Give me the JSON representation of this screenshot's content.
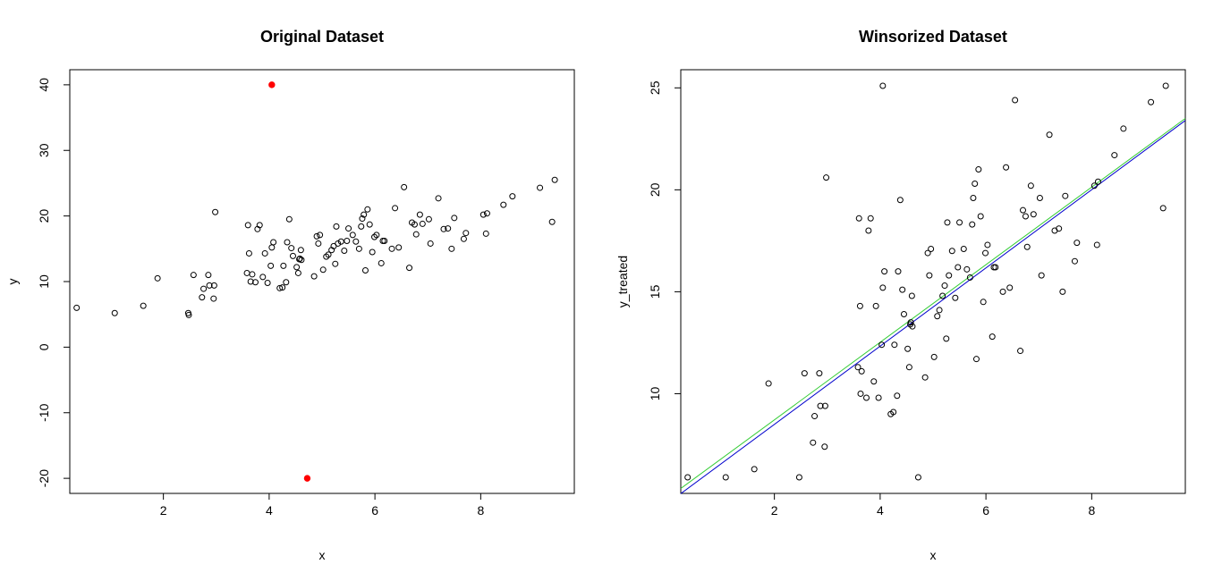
{
  "chart_data": [
    {
      "type": "scatter",
      "title": "Original Dataset",
      "xlabel": "x",
      "ylabel": "y",
      "xlim": [
        0.23,
        9.77
      ],
      "ylim": [
        -22.3,
        42.3
      ],
      "xticks": [
        2,
        4,
        6,
        8
      ],
      "yticks": [
        -20,
        -10,
        0,
        10,
        20,
        30,
        40
      ],
      "ytick_rotation": -90,
      "grid": false,
      "point_color": "#000000",
      "highlight_color": "#ff0000",
      "points": [
        [
          0.36,
          6.0
        ],
        [
          1.08,
          5.2
        ],
        [
          1.62,
          6.3
        ],
        [
          1.89,
          10.5
        ],
        [
          2.47,
          5.2
        ],
        [
          2.48,
          4.9
        ],
        [
          2.57,
          11.0
        ],
        [
          2.73,
          7.6
        ],
        [
          2.76,
          8.9
        ],
        [
          2.85,
          11.0
        ],
        [
          2.87,
          9.4
        ],
        [
          2.95,
          7.4
        ],
        [
          2.96,
          9.4
        ],
        [
          2.98,
          20.6
        ],
        [
          3.58,
          11.3
        ],
        [
          3.6,
          18.6
        ],
        [
          3.62,
          14.3
        ],
        [
          3.65,
          10.0
        ],
        [
          3.68,
          11.1
        ],
        [
          3.74,
          9.9
        ],
        [
          3.78,
          18.0
        ],
        [
          3.82,
          18.6
        ],
        [
          3.88,
          10.7
        ],
        [
          3.92,
          14.3
        ],
        [
          3.97,
          9.8
        ],
        [
          4.03,
          12.4
        ],
        [
          4.05,
          15.2
        ],
        [
          4.08,
          16.0
        ],
        [
          4.2,
          9.0
        ],
        [
          4.25,
          9.1
        ],
        [
          4.27,
          12.4
        ],
        [
          4.32,
          9.9
        ],
        [
          4.34,
          16.0
        ],
        [
          4.38,
          19.5
        ],
        [
          4.42,
          15.1
        ],
        [
          4.45,
          13.9
        ],
        [
          4.52,
          12.2
        ],
        [
          4.55,
          11.3
        ],
        [
          4.57,
          13.4
        ],
        [
          4.58,
          13.5
        ],
        [
          4.6,
          14.8
        ],
        [
          4.61,
          13.3
        ],
        [
          4.85,
          10.8
        ],
        [
          4.9,
          16.9
        ],
        [
          4.93,
          15.8
        ],
        [
          4.96,
          17.1
        ],
        [
          5.02,
          11.8
        ],
        [
          5.08,
          13.8
        ],
        [
          5.12,
          14.1
        ],
        [
          5.18,
          14.8
        ],
        [
          5.22,
          15.4
        ],
        [
          5.25,
          12.7
        ],
        [
          5.27,
          18.4
        ],
        [
          5.3,
          15.8
        ],
        [
          5.36,
          16.1
        ],
        [
          5.42,
          14.7
        ],
        [
          5.47,
          16.2
        ],
        [
          5.5,
          18.1
        ],
        [
          5.58,
          17.1
        ],
        [
          5.64,
          16.1
        ],
        [
          5.7,
          15.0
        ],
        [
          5.74,
          18.4
        ],
        [
          5.76,
          19.6
        ],
        [
          5.79,
          20.2
        ],
        [
          5.82,
          11.7
        ],
        [
          5.86,
          21.0
        ],
        [
          5.9,
          18.7
        ],
        [
          5.95,
          14.5
        ],
        [
          5.99,
          16.8
        ],
        [
          6.03,
          17.1
        ],
        [
          6.12,
          12.8
        ],
        [
          6.15,
          16.2
        ],
        [
          6.18,
          16.2
        ],
        [
          6.32,
          15.0
        ],
        [
          6.38,
          21.2
        ],
        [
          6.45,
          15.2
        ],
        [
          6.55,
          24.4
        ],
        [
          6.65,
          12.1
        ],
        [
          6.7,
          19.0
        ],
        [
          6.75,
          18.7
        ],
        [
          6.78,
          17.2
        ],
        [
          6.85,
          20.2
        ],
        [
          6.9,
          18.8
        ],
        [
          7.02,
          19.5
        ],
        [
          7.05,
          15.8
        ],
        [
          7.2,
          22.7
        ],
        [
          7.3,
          18.0
        ],
        [
          7.38,
          18.1
        ],
        [
          7.45,
          15.0
        ],
        [
          7.5,
          19.7
        ],
        [
          7.68,
          16.5
        ],
        [
          7.72,
          17.4
        ],
        [
          8.05,
          20.2
        ],
        [
          8.1,
          17.3
        ],
        [
          8.12,
          20.4
        ],
        [
          8.43,
          21.7
        ],
        [
          8.6,
          23.0
        ],
        [
          9.12,
          24.3
        ],
        [
          9.35,
          19.1
        ],
        [
          9.4,
          25.5
        ]
      ],
      "highlight_points": [
        [
          4.05,
          40.0
        ],
        [
          4.72,
          -20.0
        ]
      ]
    },
    {
      "type": "scatter",
      "title": "Winsorized Dataset",
      "xlabel": "x",
      "ylabel": "y_treated",
      "xlim": [
        0.23,
        9.77
      ],
      "ylim": [
        5.11,
        25.89
      ],
      "xticks": [
        2,
        4,
        6,
        8
      ],
      "yticks": [
        10,
        15,
        20,
        25
      ],
      "ytick_rotation": -90,
      "grid": false,
      "point_color": "#000000",
      "points": [
        [
          0.36,
          5.9
        ],
        [
          1.08,
          5.9
        ],
        [
          1.62,
          6.3
        ],
        [
          1.89,
          10.5
        ],
        [
          2.47,
          5.9
        ],
        [
          2.57,
          11.0
        ],
        [
          2.73,
          7.6
        ],
        [
          2.76,
          8.9
        ],
        [
          2.85,
          11.0
        ],
        [
          2.87,
          9.4
        ],
        [
          2.95,
          7.4
        ],
        [
          2.96,
          9.4
        ],
        [
          2.98,
          20.6
        ],
        [
          3.58,
          11.3
        ],
        [
          3.6,
          18.6
        ],
        [
          3.62,
          14.3
        ],
        [
          3.63,
          10.0
        ],
        [
          3.65,
          11.1
        ],
        [
          3.74,
          9.8
        ],
        [
          3.78,
          18.0
        ],
        [
          3.82,
          18.6
        ],
        [
          3.88,
          10.6
        ],
        [
          3.92,
          14.3
        ],
        [
          3.97,
          9.8
        ],
        [
          4.03,
          12.4
        ],
        [
          4.05,
          15.2
        ],
        [
          4.05,
          25.1
        ],
        [
          4.08,
          16.0
        ],
        [
          4.2,
          9.0
        ],
        [
          4.25,
          9.1
        ],
        [
          4.27,
          12.4
        ],
        [
          4.32,
          9.9
        ],
        [
          4.34,
          16.0
        ],
        [
          4.38,
          19.5
        ],
        [
          4.42,
          15.1
        ],
        [
          4.45,
          13.9
        ],
        [
          4.52,
          12.2
        ],
        [
          4.55,
          11.3
        ],
        [
          4.57,
          13.4
        ],
        [
          4.58,
          13.5
        ],
        [
          4.6,
          14.8
        ],
        [
          4.61,
          13.3
        ],
        [
          4.72,
          5.9
        ],
        [
          4.85,
          10.8
        ],
        [
          4.9,
          16.9
        ],
        [
          4.93,
          15.8
        ],
        [
          4.96,
          17.1
        ],
        [
          5.02,
          11.8
        ],
        [
          5.08,
          13.8
        ],
        [
          5.12,
          14.1
        ],
        [
          5.18,
          14.8
        ],
        [
          5.22,
          15.3
        ],
        [
          5.25,
          12.7
        ],
        [
          5.27,
          18.4
        ],
        [
          5.3,
          15.8
        ],
        [
          5.36,
          17.0
        ],
        [
          5.42,
          14.7
        ],
        [
          5.47,
          16.2
        ],
        [
          5.5,
          18.4
        ],
        [
          5.58,
          17.1
        ],
        [
          5.64,
          16.1
        ],
        [
          5.7,
          15.7
        ],
        [
          5.74,
          18.3
        ],
        [
          5.76,
          19.6
        ],
        [
          5.79,
          20.3
        ],
        [
          5.82,
          11.7
        ],
        [
          5.86,
          21.0
        ],
        [
          5.9,
          18.7
        ],
        [
          5.95,
          14.5
        ],
        [
          5.99,
          16.9
        ],
        [
          6.03,
          17.3
        ],
        [
          6.12,
          12.8
        ],
        [
          6.15,
          16.2
        ],
        [
          6.18,
          16.2
        ],
        [
          6.32,
          15.0
        ],
        [
          6.38,
          21.1
        ],
        [
          6.45,
          15.2
        ],
        [
          6.55,
          24.4
        ],
        [
          6.65,
          12.1
        ],
        [
          6.7,
          19.0
        ],
        [
          6.75,
          18.7
        ],
        [
          6.78,
          17.2
        ],
        [
          6.85,
          20.2
        ],
        [
          6.9,
          18.8
        ],
        [
          7.02,
          19.6
        ],
        [
          7.05,
          15.8
        ],
        [
          7.2,
          22.7
        ],
        [
          7.3,
          18.0
        ],
        [
          7.38,
          18.1
        ],
        [
          7.45,
          15.0
        ],
        [
          7.5,
          19.7
        ],
        [
          7.68,
          16.5
        ],
        [
          7.72,
          17.4
        ],
        [
          8.05,
          20.2
        ],
        [
          8.1,
          17.3
        ],
        [
          8.12,
          20.4
        ],
        [
          8.43,
          21.7
        ],
        [
          8.6,
          23.0
        ],
        [
          9.12,
          24.3
        ],
        [
          9.35,
          19.1
        ],
        [
          9.4,
          25.1
        ]
      ],
      "lines": [
        {
          "color": "#0000cc",
          "x": [
            0.23,
            9.77
          ],
          "y": [
            5.1,
            23.4
          ]
        },
        {
          "color": "#33cc33",
          "x": [
            0.23,
            9.77
          ],
          "y": [
            5.35,
            23.5
          ]
        }
      ]
    }
  ]
}
